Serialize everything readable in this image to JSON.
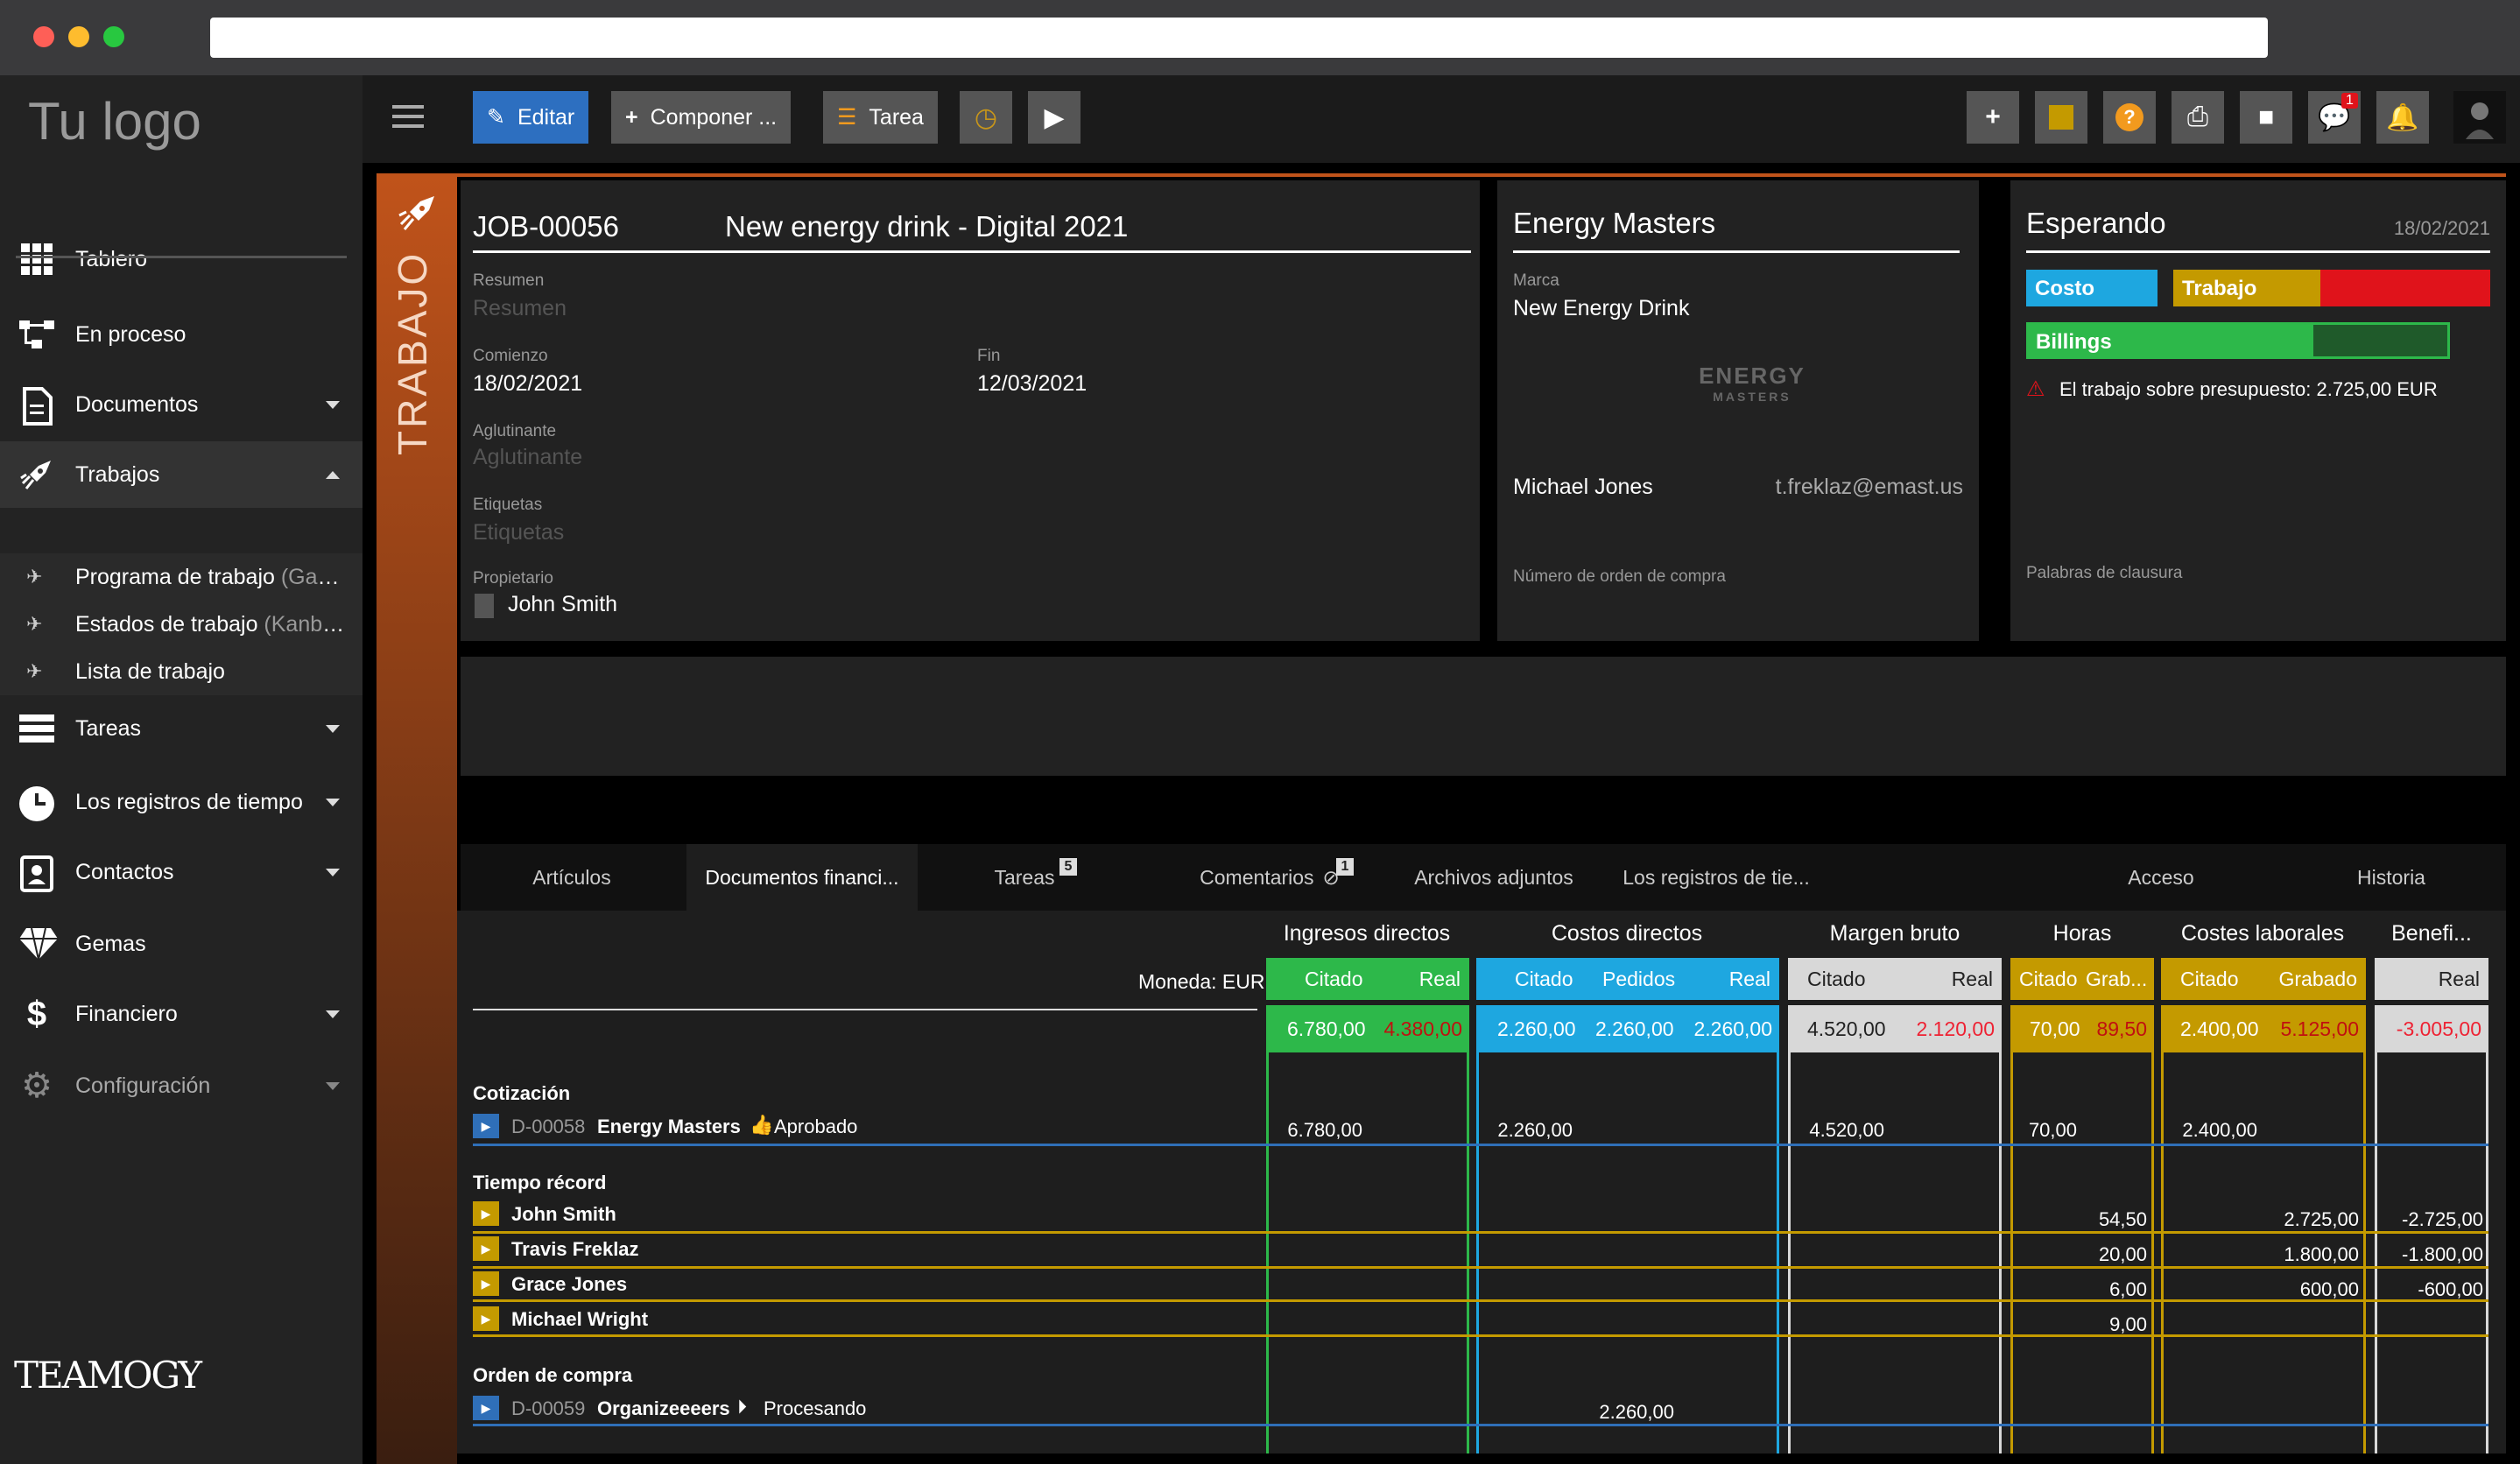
{
  "sidebar": {
    "logo": "Tu logo",
    "items": [
      {
        "label": "Tablero"
      },
      {
        "label": "En proceso"
      },
      {
        "label": "Documentos"
      },
      {
        "label": "Trabajos"
      },
      {
        "label": "Tareas"
      },
      {
        "label": "Los registros de tiempo"
      },
      {
        "label": "Contactos"
      },
      {
        "label": "Gemas"
      },
      {
        "label": "Financiero"
      },
      {
        "label": "Configuración"
      }
    ],
    "subitems": [
      {
        "label": "Programa de trabajo",
        "suffix": " (Gantt)"
      },
      {
        "label": "Estados de trabajo",
        "suffix": " (Kanban)"
      },
      {
        "label": "Lista de trabajo",
        "suffix": ""
      }
    ],
    "brand": "TEAMOGY"
  },
  "toolbar": {
    "edit": "Editar",
    "compose": "Componer ...",
    "task": "Tarea",
    "chat_badge": "1"
  },
  "job": {
    "vertical_label": "TRABAJO",
    "id": "JOB-00056",
    "title": "New energy drink - Digital 2021",
    "summary_label": "Resumen",
    "summary_placeholder": "Resumen",
    "start_label": "Comienzo",
    "start": "18/02/2021",
    "end_label": "Fin",
    "end": "12/03/2021",
    "binder_label": "Aglutinante",
    "binder_placeholder": "Aglutinante",
    "tags_label": "Etiquetas",
    "tags_placeholder": "Etiquetas",
    "owner_label": "Propietario",
    "owner": "John Smith"
  },
  "client": {
    "name": "Energy Masters",
    "brand_label": "Marca",
    "brand": "New Energy Drink",
    "logo_text_top": "ENERGY",
    "logo_text_bottom": "MASTERS",
    "contact": "Michael Jones",
    "email": "t.freklaz@emast.us",
    "po_label": "Número de orden de compra"
  },
  "status": {
    "state": "Esperando",
    "date": "18/02/2021",
    "cost": "Costo",
    "work": "Trabajo",
    "billings": "Billings",
    "billings_progress": 0.68,
    "warning": "El trabajo sobre presupuesto: 2.725,00 EUR",
    "closing_words": "Palabras de clausura"
  },
  "tabs": [
    {
      "label": "Artículos"
    },
    {
      "label": "Documentos financi..."
    },
    {
      "label": "Tareas",
      "badge": "5"
    },
    {
      "label": "Comentarios",
      "badge": "1"
    },
    {
      "label": "Archivos adjuntos"
    },
    {
      "label": "Los registros de tie..."
    },
    {
      "label": "Acceso"
    },
    {
      "label": "Historia"
    }
  ],
  "finance": {
    "currency": "Moneda: EUR",
    "groups": [
      "Ingresos directos",
      "Costos directos",
      "Margen bruto",
      "Horas",
      "Costes laborales",
      "Benefi..."
    ],
    "subheaders": {
      "citado": "Citado",
      "real": "Real",
      "pedidos": "Pedidos",
      "grab": "Grab...",
      "grabado": "Grabado"
    },
    "totals": {
      "ing_citado": "6.780,00",
      "ing_real": "4.380,00",
      "cos_citado": "2.260,00",
      "cos_pedidos": "2.260,00",
      "cos_real": "2.260,00",
      "mar_citado": "4.520,00",
      "mar_real": "2.120,00",
      "hor_citado": "70,00",
      "hor_grab": "89,50",
      "lab_citado": "2.400,00",
      "lab_grabado": "5.125,00",
      "ben_real": "-3.005,00"
    },
    "quote": {
      "section": "Cotización",
      "doc": "D-00058",
      "client": "Energy Masters",
      "status": "Aprobado",
      "ing": "6.780,00",
      "cos": "2.260,00",
      "mar": "4.520,00",
      "hor": "70,00",
      "lab": "2.400,00"
    },
    "time_section": "Tiempo récord",
    "people": [
      {
        "name": "John Smith",
        "hours": "54,50",
        "labor": "2.725,00",
        "benefit": "-2.725,00"
      },
      {
        "name": "Travis Freklaz",
        "hours": "20,00",
        "labor": "1.800,00",
        "benefit": "-1.800,00"
      },
      {
        "name": "Grace Jones",
        "hours": "6,00",
        "labor": "600,00",
        "benefit": "-600,00"
      },
      {
        "name": "Michael Wright",
        "hours": "9,00",
        "labor": "",
        "benefit": ""
      }
    ],
    "po": {
      "section": "Orden de compra",
      "doc": "D-00059",
      "supplier": "Organizeeeers",
      "status": "Procesando",
      "pedidos": "2.260,00"
    }
  },
  "colors": {
    "green": "#2db84a",
    "blue": "#1ea7e0",
    "gray": "#d8d8d8",
    "gold": "#c49a00",
    "red": "#e0131b",
    "orange": "#c0531a",
    "row_blue": "#2f6fb8"
  }
}
